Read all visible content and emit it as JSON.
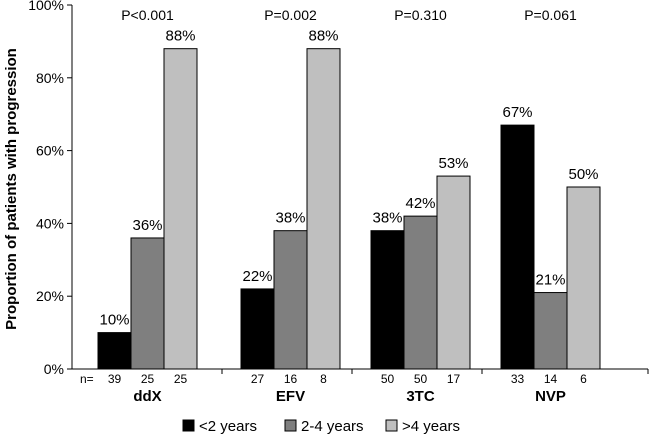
{
  "chart_data": {
    "type": "bar",
    "ylabel": "Proportion of patients with progression",
    "ylim": [
      0,
      100
    ],
    "yticks": [
      "0%",
      "20%",
      "40%",
      "60%",
      "80%",
      "100%"
    ],
    "n_prefix": "n=",
    "categories": [
      "ddX",
      "EFV",
      "3TC",
      "NVP"
    ],
    "pvalues": [
      "P<0.001",
      "P=0.002",
      "P=0.310",
      "P=0.061"
    ],
    "series": [
      {
        "name": "<2 years",
        "color": "#000000",
        "values": [
          10,
          22,
          38,
          67
        ],
        "labels": [
          "10%",
          "22%",
          "38%",
          "67%"
        ],
        "n": [
          "39",
          "27",
          "50",
          "33"
        ]
      },
      {
        "name": "2-4 years",
        "color": "#7f7f7f",
        "values": [
          36,
          38,
          42,
          21
        ],
        "labels": [
          "36%",
          "38%",
          "42%",
          "21%"
        ],
        "n": [
          "25",
          "16",
          "50",
          "14"
        ]
      },
      {
        "name": ">4 years",
        "color": "#bfbfbf",
        "values": [
          88,
          88,
          53,
          50
        ],
        "labels": [
          "88%",
          "88%",
          "53%",
          "50%"
        ],
        "n": [
          "25",
          "8",
          "17",
          "6"
        ]
      }
    ],
    "legend_position": "bottom",
    "grid": false
  }
}
